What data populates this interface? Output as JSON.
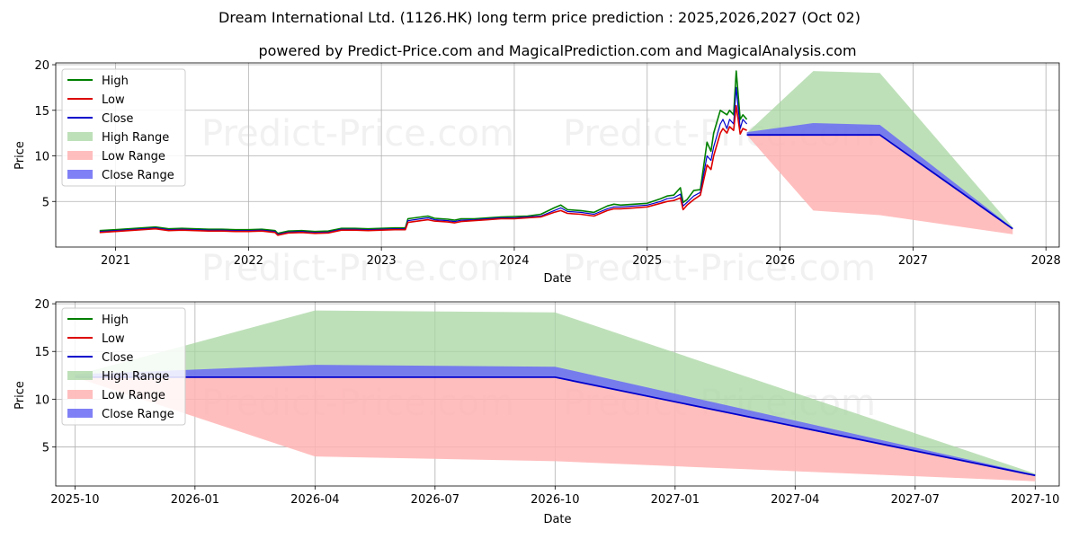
{
  "title": "Dream International Ltd. (1126.HK) long term price prediction : 2025,2026,2027 (Oct 02)",
  "subtitle": "powered by Predict-Price.com and MagicalPrediction.com and MagicalAnalysis.com",
  "watermark": "Predict-Price.com",
  "colors": {
    "high": "#008000",
    "low": "#dd0000",
    "close": "#0000cc",
    "high_range": "#a8d5a2",
    "low_range": "#ffb3b3",
    "close_range": "#6a6af5"
  },
  "chart_data": [
    {
      "type": "line",
      "name": "historical-and-forecast",
      "xlabel": "Date",
      "ylabel": "Price",
      "xlim": [
        2020.55,
        2028.1
      ],
      "ylim": [
        0,
        20.2
      ],
      "x_ticks": [
        2021,
        2022,
        2023,
        2024,
        2025,
        2026,
        2027,
        2028
      ],
      "x_tick_labels": [
        "2021",
        "2022",
        "2023",
        "2024",
        "2025",
        "2026",
        "2027",
        "2028"
      ],
      "y_ticks": [
        5,
        10,
        15,
        20
      ],
      "y_tick_labels": [
        "5",
        "10",
        "15",
        "20"
      ],
      "legend": [
        "High",
        "Low",
        "Close",
        "High Range",
        "Low Range",
        "Close Range"
      ],
      "grid": true,
      "historical": {
        "x": [
          2020.88,
          2021.0,
          2021.1,
          2021.2,
          2021.3,
          2021.4,
          2021.5,
          2021.6,
          2021.7,
          2021.8,
          2021.9,
          2022.0,
          2022.1,
          2022.2,
          2022.22,
          2022.3,
          2022.4,
          2022.5,
          2022.6,
          2022.7,
          2022.8,
          2022.9,
          2023.0,
          2023.1,
          2023.18,
          2023.2,
          2023.3,
          2023.35,
          2023.4,
          2023.5,
          2023.55,
          2023.6,
          2023.7,
          2023.8,
          2023.9,
          2024.0,
          2024.1,
          2024.2,
          2024.3,
          2024.35,
          2024.4,
          2024.5,
          2024.6,
          2024.7,
          2024.75,
          2024.8,
          2024.9,
          2025.0,
          2025.1,
          2025.15,
          2025.2,
          2025.25,
          2025.27,
          2025.3,
          2025.35,
          2025.4,
          2025.45,
          2025.48,
          2025.5,
          2025.55,
          2025.57,
          2025.6,
          2025.62,
          2025.65,
          2025.67,
          2025.7,
          2025.72,
          2025.75
        ],
        "close": [
          1.7,
          1.8,
          1.9,
          2.0,
          2.1,
          1.9,
          1.95,
          1.9,
          1.85,
          1.85,
          1.8,
          1.8,
          1.85,
          1.7,
          1.4,
          1.65,
          1.7,
          1.6,
          1.65,
          1.95,
          1.95,
          1.9,
          1.95,
          2.0,
          2.0,
          2.9,
          3.1,
          3.2,
          3.0,
          2.9,
          2.8,
          2.95,
          3.0,
          3.1,
          3.2,
          3.2,
          3.3,
          3.4,
          4.0,
          4.3,
          3.9,
          3.8,
          3.6,
          4.2,
          4.4,
          4.4,
          4.5,
          4.6,
          5.0,
          5.3,
          5.4,
          5.8,
          4.5,
          4.9,
          5.6,
          6.0,
          10.0,
          9.5,
          11.0,
          13.5,
          14.0,
          13.0,
          14.0,
          13.5,
          17.5,
          13.0,
          14.0,
          13.5
        ],
        "high": [
          1.8,
          1.9,
          2.0,
          2.1,
          2.2,
          2.0,
          2.05,
          2.0,
          1.95,
          1.95,
          1.9,
          1.9,
          1.95,
          1.8,
          1.5,
          1.75,
          1.8,
          1.7,
          1.75,
          2.05,
          2.05,
          2.0,
          2.05,
          2.1,
          2.1,
          3.1,
          3.3,
          3.4,
          3.15,
          3.05,
          2.95,
          3.1,
          3.1,
          3.2,
          3.3,
          3.35,
          3.4,
          3.6,
          4.3,
          4.6,
          4.1,
          4.0,
          3.8,
          4.5,
          4.7,
          4.6,
          4.7,
          4.8,
          5.3,
          5.6,
          5.7,
          6.5,
          4.9,
          5.2,
          6.2,
          6.3,
          11.5,
          10.5,
          12.5,
          15.0,
          14.8,
          14.5,
          15.0,
          14.5,
          19.3,
          14.0,
          14.5,
          14.0
        ],
        "low": [
          1.6,
          1.7,
          1.8,
          1.9,
          2.0,
          1.8,
          1.85,
          1.8,
          1.75,
          1.75,
          1.7,
          1.7,
          1.75,
          1.6,
          1.3,
          1.55,
          1.6,
          1.5,
          1.55,
          1.85,
          1.85,
          1.8,
          1.85,
          1.9,
          1.9,
          2.7,
          2.9,
          3.0,
          2.85,
          2.75,
          2.65,
          2.8,
          2.9,
          3.0,
          3.1,
          3.1,
          3.2,
          3.3,
          3.8,
          4.0,
          3.7,
          3.6,
          3.4,
          4.0,
          4.2,
          4.2,
          4.3,
          4.4,
          4.8,
          5.0,
          5.1,
          5.4,
          4.1,
          4.6,
          5.2,
          5.7,
          9.0,
          8.5,
          10.0,
          12.5,
          13.0,
          12.5,
          13.2,
          12.8,
          15.5,
          12.4,
          13.0,
          12.8
        ]
      },
      "forecast": {
        "x": [
          2025.75,
          2026.25,
          2026.75,
          2027.75
        ],
        "close": [
          12.3,
          12.3,
          12.3,
          2.0
        ],
        "high_range_upper": [
          12.5,
          19.3,
          19.1,
          2.2
        ],
        "low_range_lower": [
          12.3,
          4.0,
          3.5,
          1.4
        ],
        "close_range_upper": [
          12.6,
          13.6,
          13.4,
          2.1
        ],
        "close_range_lower": [
          12.3,
          12.3,
          12.3,
          2.0
        ]
      }
    },
    {
      "type": "line",
      "name": "forecast-zoom",
      "xlabel": "Date",
      "ylabel": "Price",
      "xlim": [
        2025.71,
        2027.8
      ],
      "ylim": [
        0.9,
        20.2
      ],
      "x_ticks": [
        2025.75,
        2026.0,
        2026.25,
        2026.5,
        2026.75,
        2027.0,
        2027.25,
        2027.5,
        2027.75
      ],
      "x_tick_labels": [
        "2025-10",
        "2026-01",
        "2026-04",
        "2026-07",
        "2026-10",
        "2027-01",
        "2027-04",
        "2027-07",
        "2027-10"
      ],
      "y_ticks": [
        5,
        10,
        15,
        20
      ],
      "y_tick_labels": [
        "5",
        "10",
        "15",
        "20"
      ],
      "legend": [
        "High",
        "Low",
        "Close",
        "High Range",
        "Low Range",
        "Close Range"
      ],
      "grid": true,
      "forecast": {
        "x": [
          2025.75,
          2026.25,
          2026.75,
          2027.75
        ],
        "close": [
          12.3,
          12.3,
          12.3,
          2.0
        ],
        "high_range_upper": [
          12.5,
          19.3,
          19.1,
          2.2
        ],
        "low_range_lower": [
          12.3,
          4.0,
          3.5,
          1.4
        ],
        "close_range_upper": [
          12.6,
          13.6,
          13.4,
          2.1
        ],
        "close_range_lower": [
          12.3,
          12.3,
          12.3,
          2.0
        ]
      }
    }
  ]
}
